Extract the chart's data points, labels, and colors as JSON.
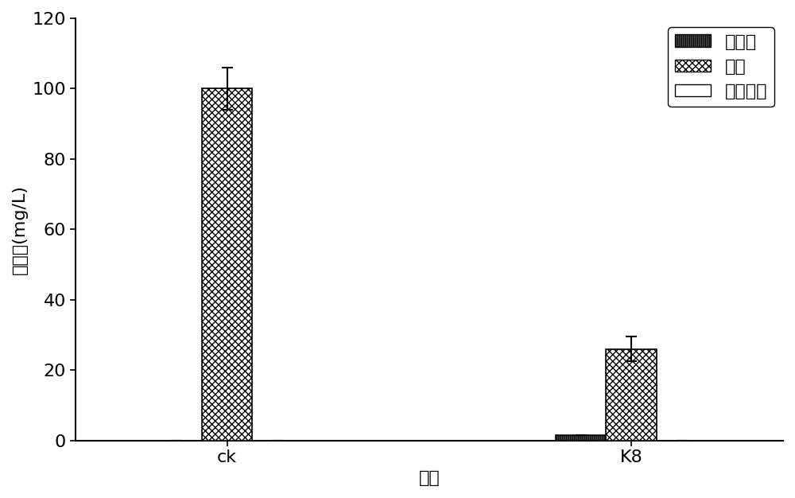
{
  "categories": [
    "ck",
    "K8"
  ],
  "series": [
    {
      "label": "确态氮",
      "hatch": "||||||||||",
      "facecolor": "white",
      "edgecolor": "black",
      "values": [
        0.0,
        1.5
      ],
      "errors": [
        0.0,
        0.0
      ]
    },
    {
      "label": "氨氮",
      "hatch": "xxxx",
      "facecolor": "white",
      "edgecolor": "black",
      "values": [
        100.0,
        26.0
      ],
      "errors": [
        6.0,
        3.5
      ]
    },
    {
      "label": "亚确态氮",
      "hatch": "",
      "facecolor": "white",
      "edgecolor": "black",
      "values": [
        0.0,
        0.0
      ],
      "errors": [
        0.0,
        0.0
      ]
    }
  ],
  "ylabel": "氮含量(mg/L)",
  "xlabel": "处理",
  "ylim": [
    0,
    120
  ],
  "yticks": [
    0,
    20,
    40,
    60,
    80,
    100,
    120
  ],
  "bar_width": 0.25,
  "group_centers": [
    1.0,
    3.0
  ],
  "figsize": [
    10.0,
    6.26
  ],
  "dpi": 100,
  "legend_loc": "upper right",
  "font_size": 16,
  "tick_font_size": 16
}
